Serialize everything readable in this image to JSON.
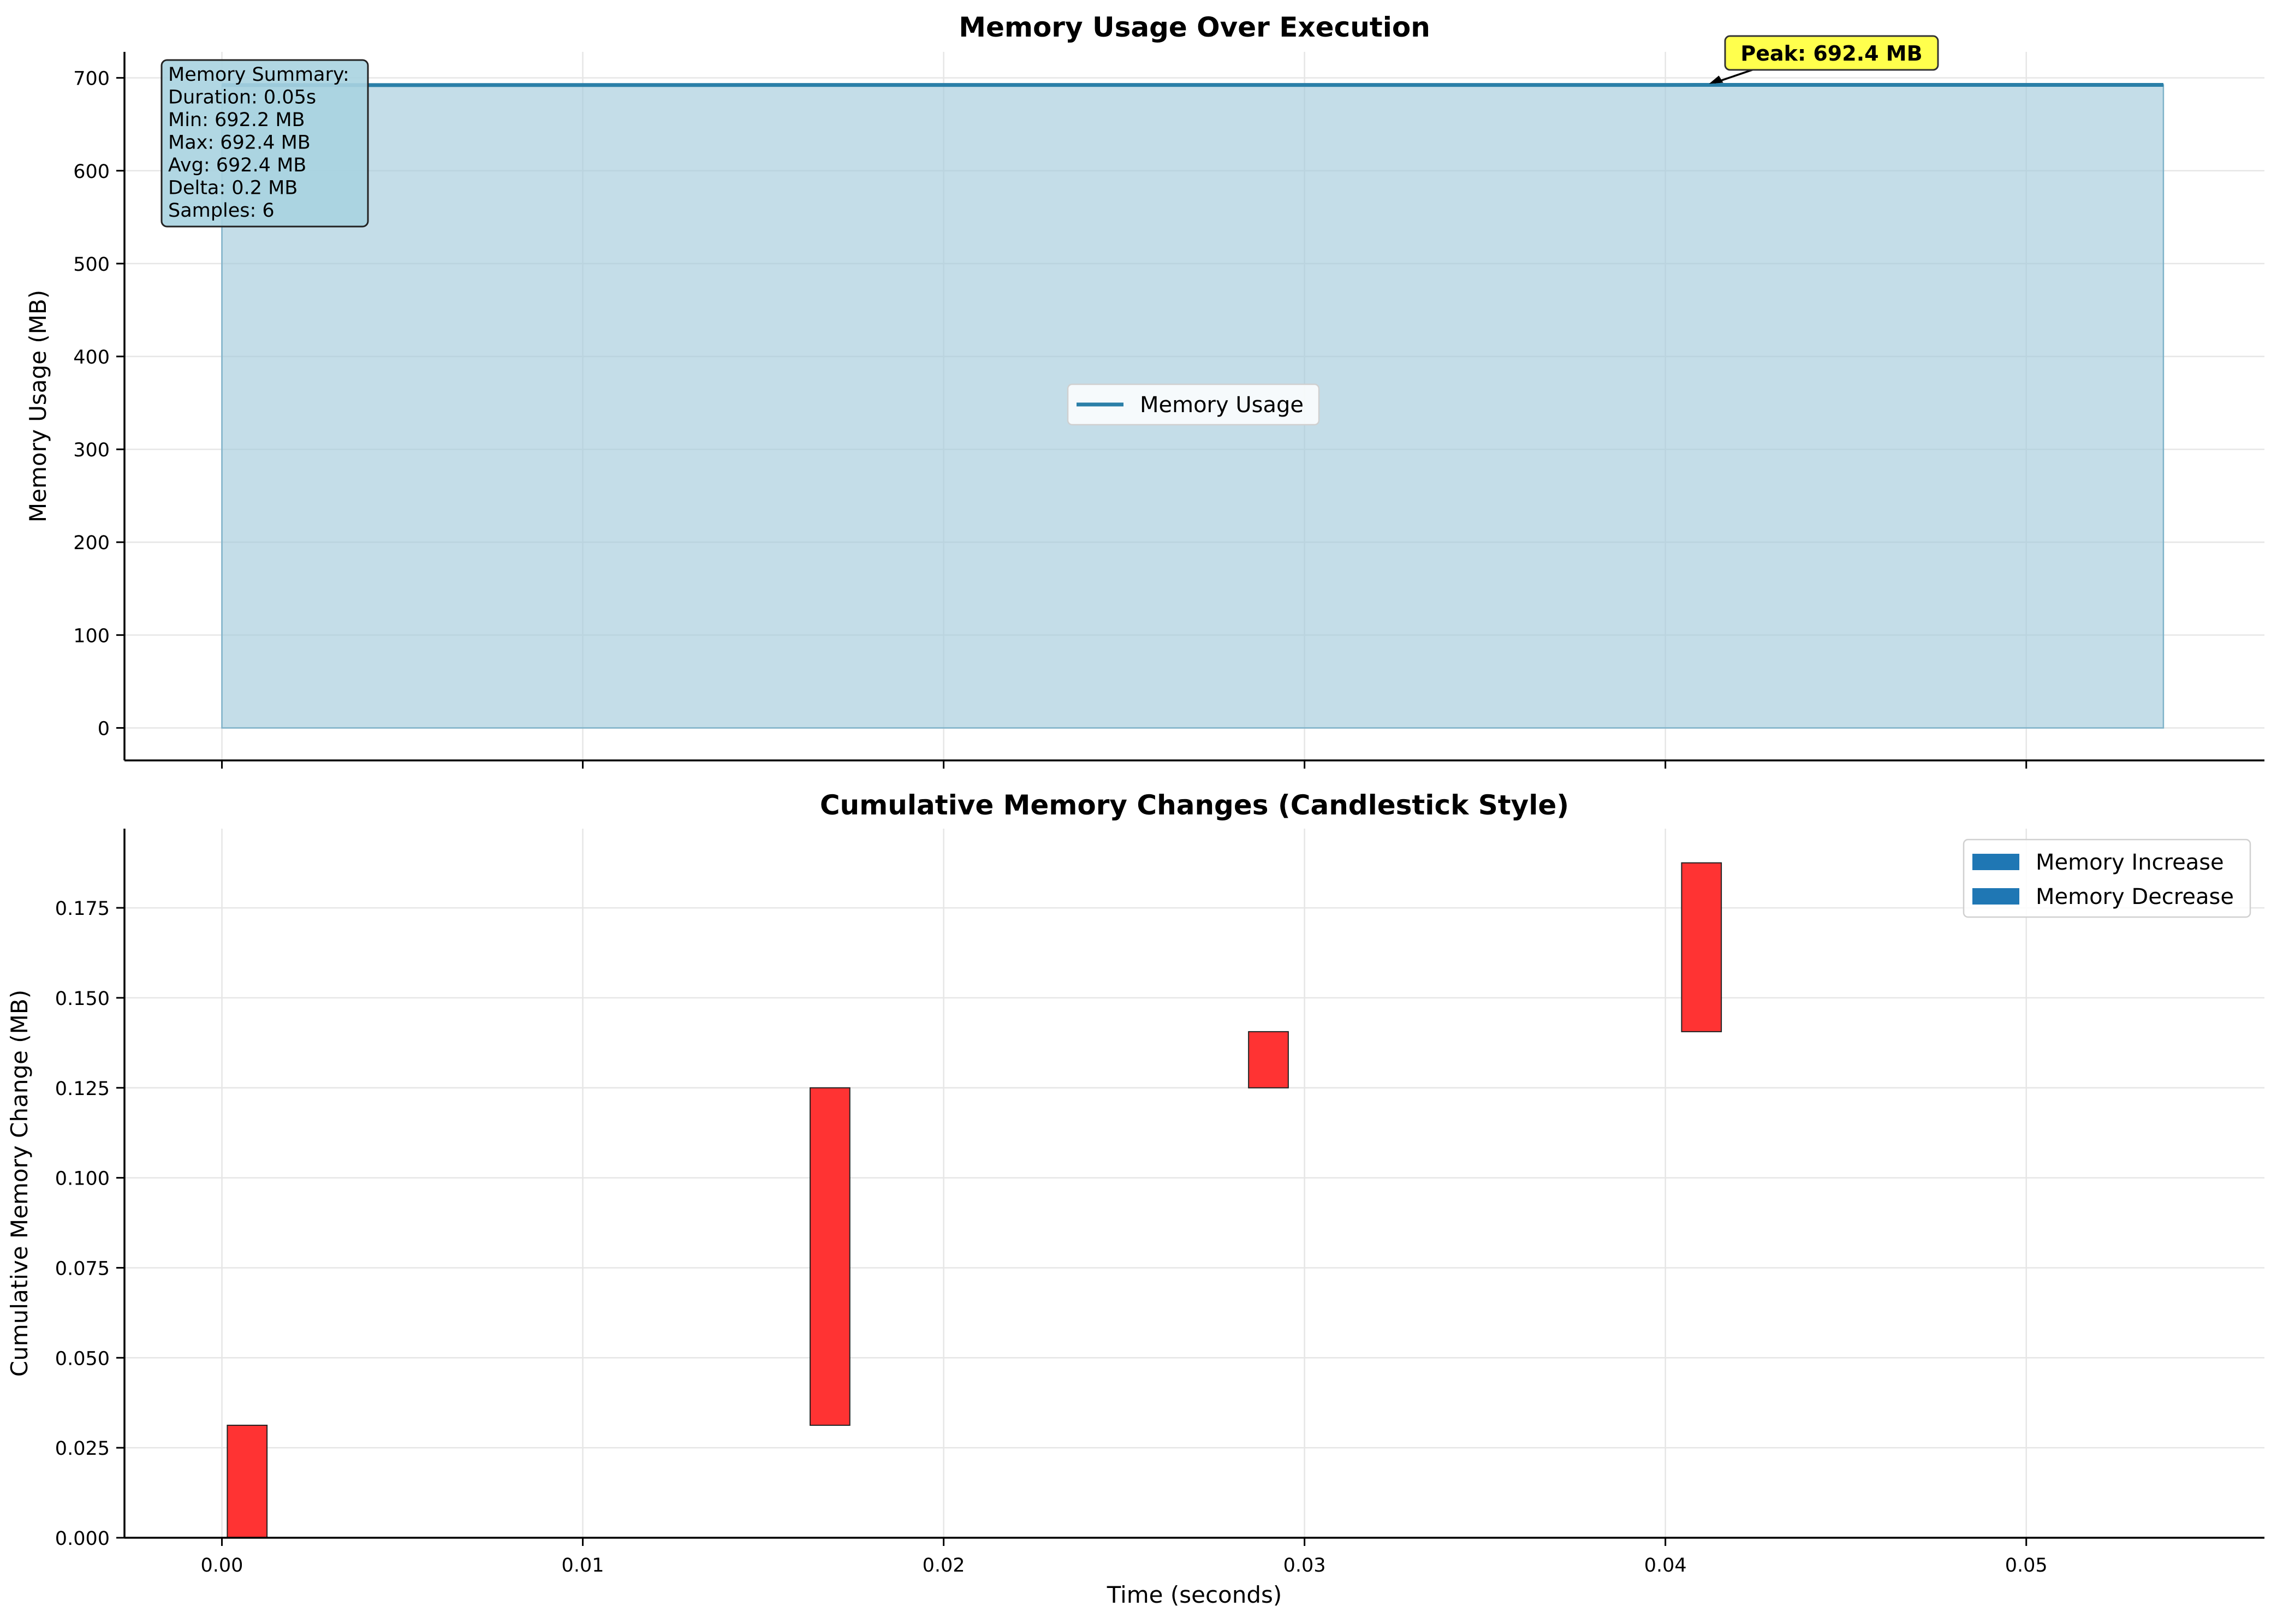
{
  "chart_data": [
    {
      "type": "area",
      "title": "Memory Usage Over Execution",
      "xlabel": "",
      "ylabel": "Memory Usage (MB)",
      "xlim": [
        -0.0027,
        0.0566
      ],
      "ylim": [
        -35,
        728
      ],
      "xticks": [
        0.0,
        0.01,
        0.02,
        0.03,
        0.04,
        0.05
      ],
      "yticks": [
        0,
        100,
        200,
        300,
        400,
        500,
        600,
        700
      ],
      "grid": true,
      "legend_position": "center",
      "series": [
        {
          "name": "Memory Usage",
          "color": "#2a7fa8",
          "fill_color": "#9fc8da",
          "x": [
            0.0,
            0.001,
            0.0168,
            0.0289,
            0.0409,
            0.0538
          ],
          "y": [
            692.2,
            692.2,
            692.35,
            692.37,
            692.4,
            692.4
          ]
        }
      ],
      "peak_annotation": {
        "label": "Peak: 692.4 MB",
        "x": 0.0413,
        "y": 692.4
      },
      "summary_box": {
        "lines": [
          "Memory Summary:",
          "Duration: 0.05s",
          "Min: 692.2 MB",
          "Max: 692.4 MB",
          "Avg: 692.4 MB",
          "Delta: 0.2 MB",
          "Samples: 6"
        ]
      }
    },
    {
      "type": "bar",
      "title": "Cumulative Memory Changes (Candlestick Style)",
      "xlabel": "Time (seconds)",
      "ylabel": "Cumulative Memory Change (MB)",
      "xlim": [
        -0.0027,
        0.0566
      ],
      "ylim": [
        0,
        0.197
      ],
      "xticks": [
        0.0,
        0.01,
        0.02,
        0.03,
        0.04,
        0.05
      ],
      "xtick_labels": [
        "0.00",
        "0.01",
        "0.02",
        "0.03",
        "0.04",
        "0.05"
      ],
      "yticks": [
        0.0,
        0.025,
        0.05,
        0.075,
        0.1,
        0.125,
        0.15,
        0.175
      ],
      "ytick_labels": [
        "0.000",
        "0.025",
        "0.050",
        "0.075",
        "0.100",
        "0.125",
        "0.150",
        "0.175"
      ],
      "grid": true,
      "legend_position": "top-right",
      "legend": [
        {
          "name": "Memory Increase",
          "color": "#1f77b4"
        },
        {
          "name": "Memory Decrease",
          "color": "#1f77b4"
        }
      ],
      "bar_color": "#ff3333",
      "bars": [
        {
          "x0": 0.00015,
          "x1": 0.00125,
          "bottom": 0.0,
          "top": 0.03125
        },
        {
          "x0": 0.0163,
          "x1": 0.0174,
          "bottom": 0.03125,
          "top": 0.125
        },
        {
          "x0": 0.02845,
          "x1": 0.02955,
          "bottom": 0.125,
          "top": 0.1406
        },
        {
          "x0": 0.04045,
          "x1": 0.04155,
          "bottom": 0.1406,
          "top": 0.1875
        }
      ]
    }
  ]
}
